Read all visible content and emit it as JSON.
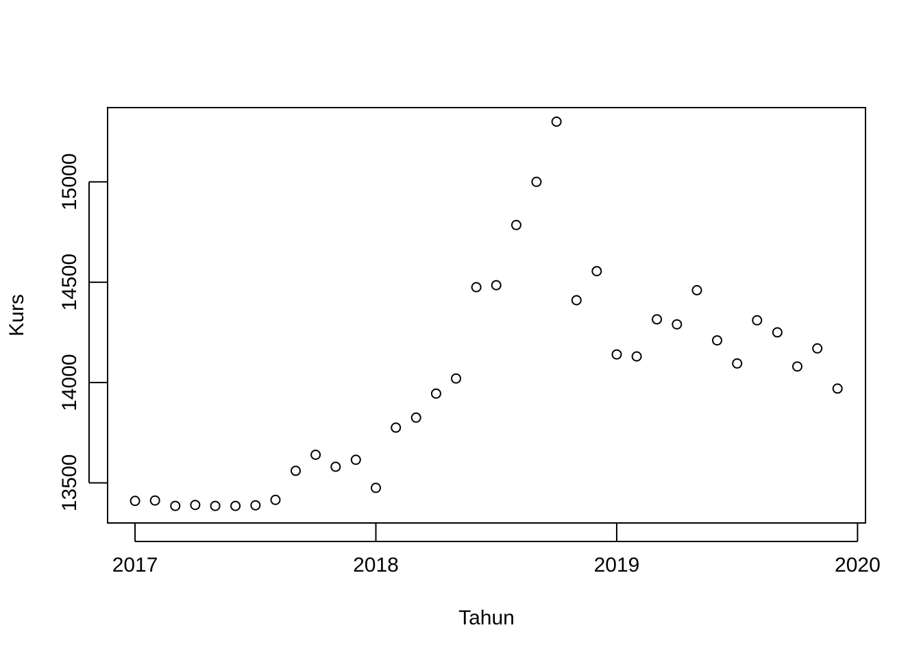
{
  "chart_data": {
    "type": "scatter",
    "title": "",
    "xlabel": "Tahun",
    "ylabel": "Kurs",
    "xlim": [
      2016.886,
      2020.033
    ],
    "ylim": [
      13300,
      15370
    ],
    "x_ticks": [
      2017,
      2018,
      2019,
      2020
    ],
    "y_ticks": [
      13500,
      14000,
      14500,
      15000
    ],
    "grid": false,
    "legend": "none",
    "marker": "open-circle",
    "colors": {
      "point": "#000000",
      "axis": "#000000",
      "background": "#ffffff"
    },
    "series": [
      {
        "x": [
          2017.0,
          2017.083,
          2017.167,
          2017.25,
          2017.333,
          2017.417,
          2017.5,
          2017.583,
          2017.667,
          2017.75,
          2017.833,
          2017.917,
          2018.0,
          2018.083,
          2018.167,
          2018.25,
          2018.333,
          2018.417,
          2018.5,
          2018.583,
          2018.667,
          2018.75,
          2018.833,
          2018.917,
          2019.0,
          2019.083,
          2019.167,
          2019.25,
          2019.333,
          2019.417,
          2019.5,
          2019.583,
          2019.667,
          2019.75,
          2019.833,
          2019.917
        ],
        "y": [
          13410,
          13412,
          13385,
          13390,
          13385,
          13385,
          13388,
          13415,
          13560,
          13640,
          13580,
          13615,
          13475,
          13775,
          13825,
          13945,
          14020,
          14475,
          14485,
          14785,
          15000,
          15300,
          14410,
          14555,
          14140,
          14130,
          14315,
          14290,
          14460,
          14210,
          14095,
          14310,
          14250,
          14080,
          14170,
          13970
        ]
      }
    ]
  }
}
